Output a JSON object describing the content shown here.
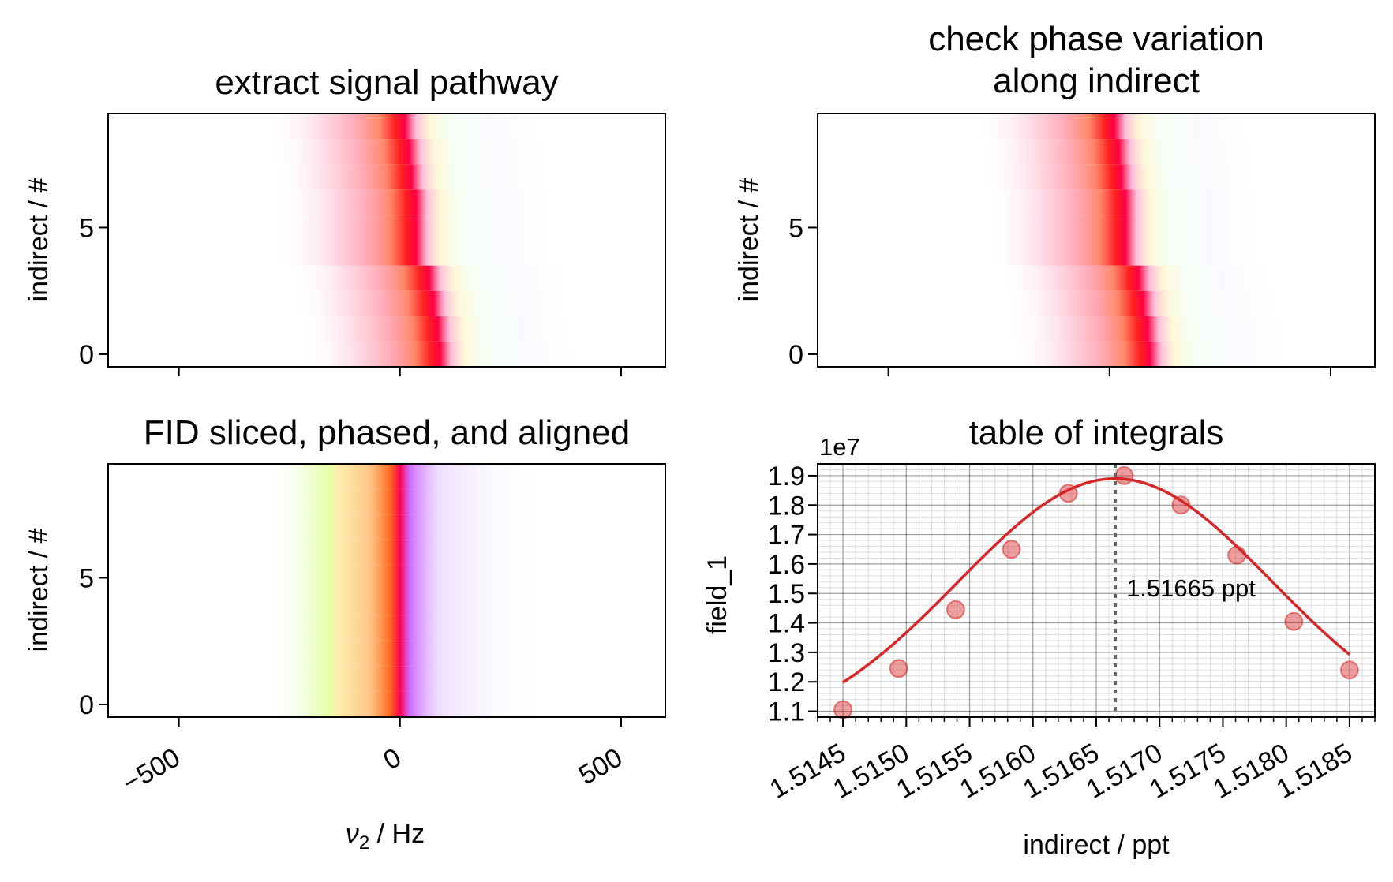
{
  "chart_data": [
    {
      "type": "heatmap",
      "title": "extract signal pathway",
      "ylabel": "indirect / #",
      "xlabel": "",
      "xlim": [
        -660,
        600
      ],
      "ylim": [
        -0.5,
        9.5
      ],
      "xticks": [
        -500,
        0,
        500
      ],
      "yticks": [
        0,
        5
      ],
      "yticklabels": [
        "0",
        "5"
      ],
      "rows": 10,
      "peak_centers_hz": [
        75,
        70,
        60,
        50,
        20,
        20,
        20,
        10,
        5,
        -5
      ],
      "colormap": "phase-colored"
    },
    {
      "type": "heatmap",
      "title_lines": [
        "check phase variation",
        "along indirect"
      ],
      "ylabel": "indirect / #",
      "xlabel": "",
      "xlim": [
        -660,
        600
      ],
      "ylim": [
        -0.5,
        9.5
      ],
      "xticks": [
        -500,
        0,
        500
      ],
      "yticks": [
        0,
        5
      ],
      "yticklabels": [
        "0",
        "5"
      ],
      "rows": 10,
      "peak_centers_hz": [
        75,
        70,
        60,
        50,
        20,
        20,
        20,
        10,
        5,
        -5
      ],
      "colormap": "phase-colored"
    },
    {
      "type": "heatmap",
      "title": "FID sliced, phased, and aligned",
      "ylabel": "indirect / #",
      "xlabel_prefix": "ν",
      "xlabel_sub": "2",
      "xlabel_suffix": " / Hz",
      "xlim": [
        -660,
        600
      ],
      "ylim": [
        -0.5,
        9.5
      ],
      "xticks": [
        -500,
        0,
        500
      ],
      "xticklabels": [
        "−500",
        "0",
        "500"
      ],
      "yticks": [
        0,
        5
      ],
      "yticklabels": [
        "0",
        "5"
      ],
      "rows": 10,
      "peak_center_hz": 0,
      "colormap": "phase-colored"
    },
    {
      "type": "scatter",
      "title": "table of integrals",
      "xlabel": "indirect / ppt",
      "ylabel": "field_1",
      "offset_text": "1e7",
      "xlim": [
        1.5143,
        1.5187
      ],
      "ylim": [
        1.08,
        1.94
      ],
      "xticks": [
        1.5145,
        1.515,
        1.5155,
        1.516,
        1.5165,
        1.517,
        1.5175,
        1.518,
        1.5185
      ],
      "xticklabels": [
        "1.5145",
        "1.5150",
        "1.5155",
        "1.5160",
        "1.5165",
        "1.5170",
        "1.5175",
        "1.5180",
        "1.5185"
      ],
      "yticks": [
        1.1,
        1.2,
        1.3,
        1.4,
        1.5,
        1.6,
        1.7,
        1.8,
        1.9
      ],
      "yticklabels": [
        "1.1",
        "1.2",
        "1.3",
        "1.4",
        "1.5",
        "1.6",
        "1.7",
        "1.8",
        "1.9"
      ],
      "grid": true,
      "series": [
        {
          "kind": "points",
          "color": "#d62728",
          "x": [
            1.5145,
            1.51494,
            1.51539,
            1.51583,
            1.51628,
            1.51672,
            1.51717,
            1.51761,
            1.51806,
            1.5185
          ],
          "y": [
            1.105,
            1.245,
            1.445,
            1.65,
            1.84,
            1.9,
            1.8,
            1.63,
            1.405,
            1.24
          ]
        },
        {
          "kind": "fit",
          "color": "#d62728",
          "center": 1.51665,
          "peak": 1.89,
          "sigma": 0.00124
        }
      ],
      "annotation": {
        "x": 1.51665,
        "label": "1.51665 ppt",
        "line_color": "#666666"
      }
    }
  ]
}
